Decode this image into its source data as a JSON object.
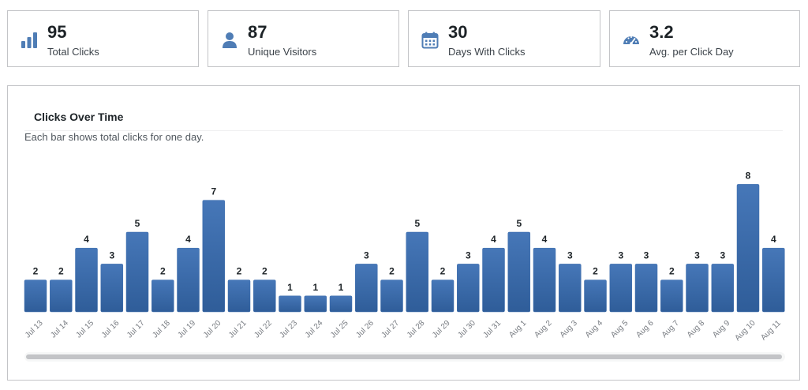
{
  "stats": [
    {
      "value": "95",
      "label": "Total Clicks",
      "icon": "bar-chart-icon"
    },
    {
      "value": "87",
      "label": "Unique Visitors",
      "icon": "person-icon"
    },
    {
      "value": "30",
      "label": "Days With Clicks",
      "icon": "calendar-icon"
    },
    {
      "value": "3.2",
      "label": "Avg. per Click Day",
      "icon": "gauge-icon"
    }
  ],
  "panel": {
    "title": "Clicks Over Time",
    "subtitle": "Each bar shows total clicks for one day."
  },
  "colors": {
    "bar": "#3e6ead",
    "icon": "#4f7db5"
  },
  "chart_data": {
    "type": "bar",
    "title": "Clicks Over Time",
    "categories": [
      "Jul 13",
      "Jul 14",
      "Jul 15",
      "Jul 16",
      "Jul 17",
      "Jul 18",
      "Jul 19",
      "Jul 20",
      "Jul 21",
      "Jul 22",
      "Jul 23",
      "Jul 24",
      "Jul 25",
      "Jul 26",
      "Jul 27",
      "Jul 28",
      "Jul 29",
      "Jul 30",
      "Jul 31",
      "Aug 1",
      "Aug 2",
      "Aug 3",
      "Aug 4",
      "Aug 5",
      "Aug 6",
      "Aug 7",
      "Aug 8",
      "Aug 9",
      "Aug 10",
      "Aug 11"
    ],
    "values": [
      2,
      2,
      4,
      3,
      5,
      2,
      4,
      7,
      2,
      2,
      1,
      1,
      1,
      3,
      2,
      5,
      2,
      3,
      4,
      5,
      4,
      3,
      2,
      3,
      3,
      2,
      3,
      3,
      8,
      4
    ],
    "data_labels": true,
    "grid": false,
    "ylim": [
      0,
      8
    ]
  }
}
